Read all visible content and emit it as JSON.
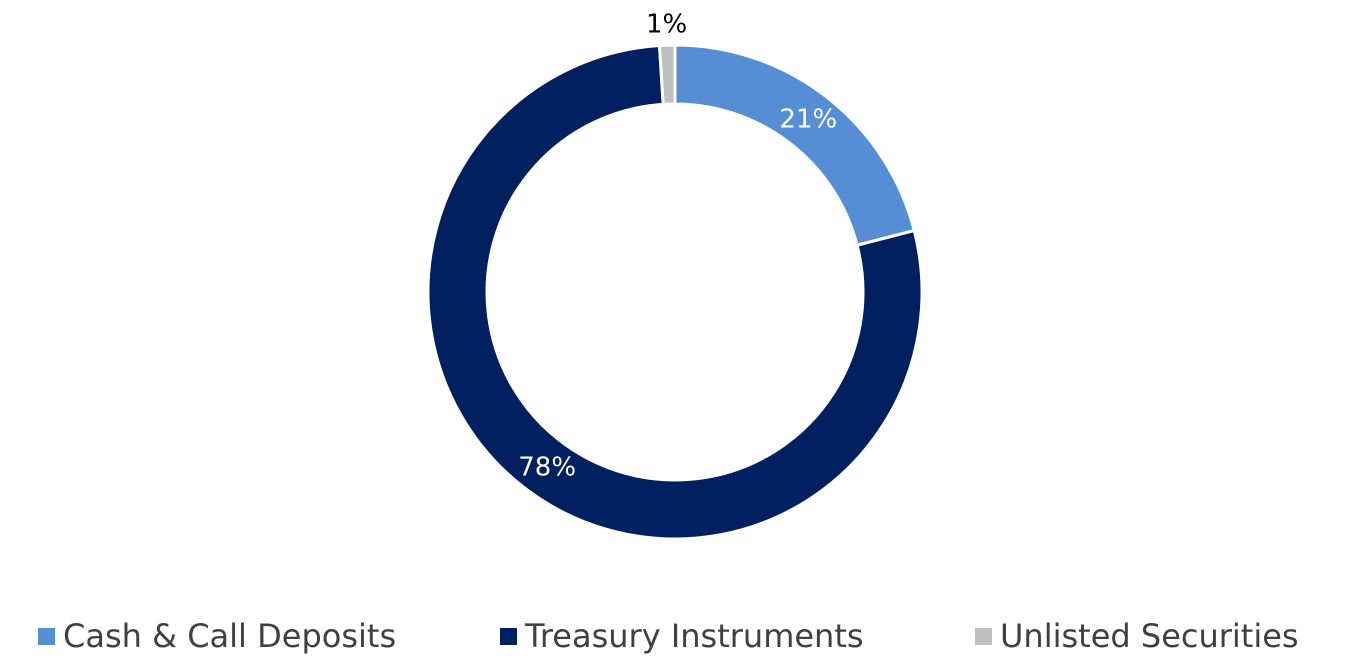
{
  "chart_data": {
    "type": "pie",
    "categories": [
      "Cash & Call Deposits",
      "Treasury Instruments",
      "Unlisted Securities"
    ],
    "values": [
      21,
      78,
      1
    ],
    "value_labels": [
      "21%",
      "78%",
      "1%"
    ],
    "colors": [
      "#558ed5",
      "#002060",
      "#bfbfbf"
    ],
    "legend": "bottom"
  }
}
